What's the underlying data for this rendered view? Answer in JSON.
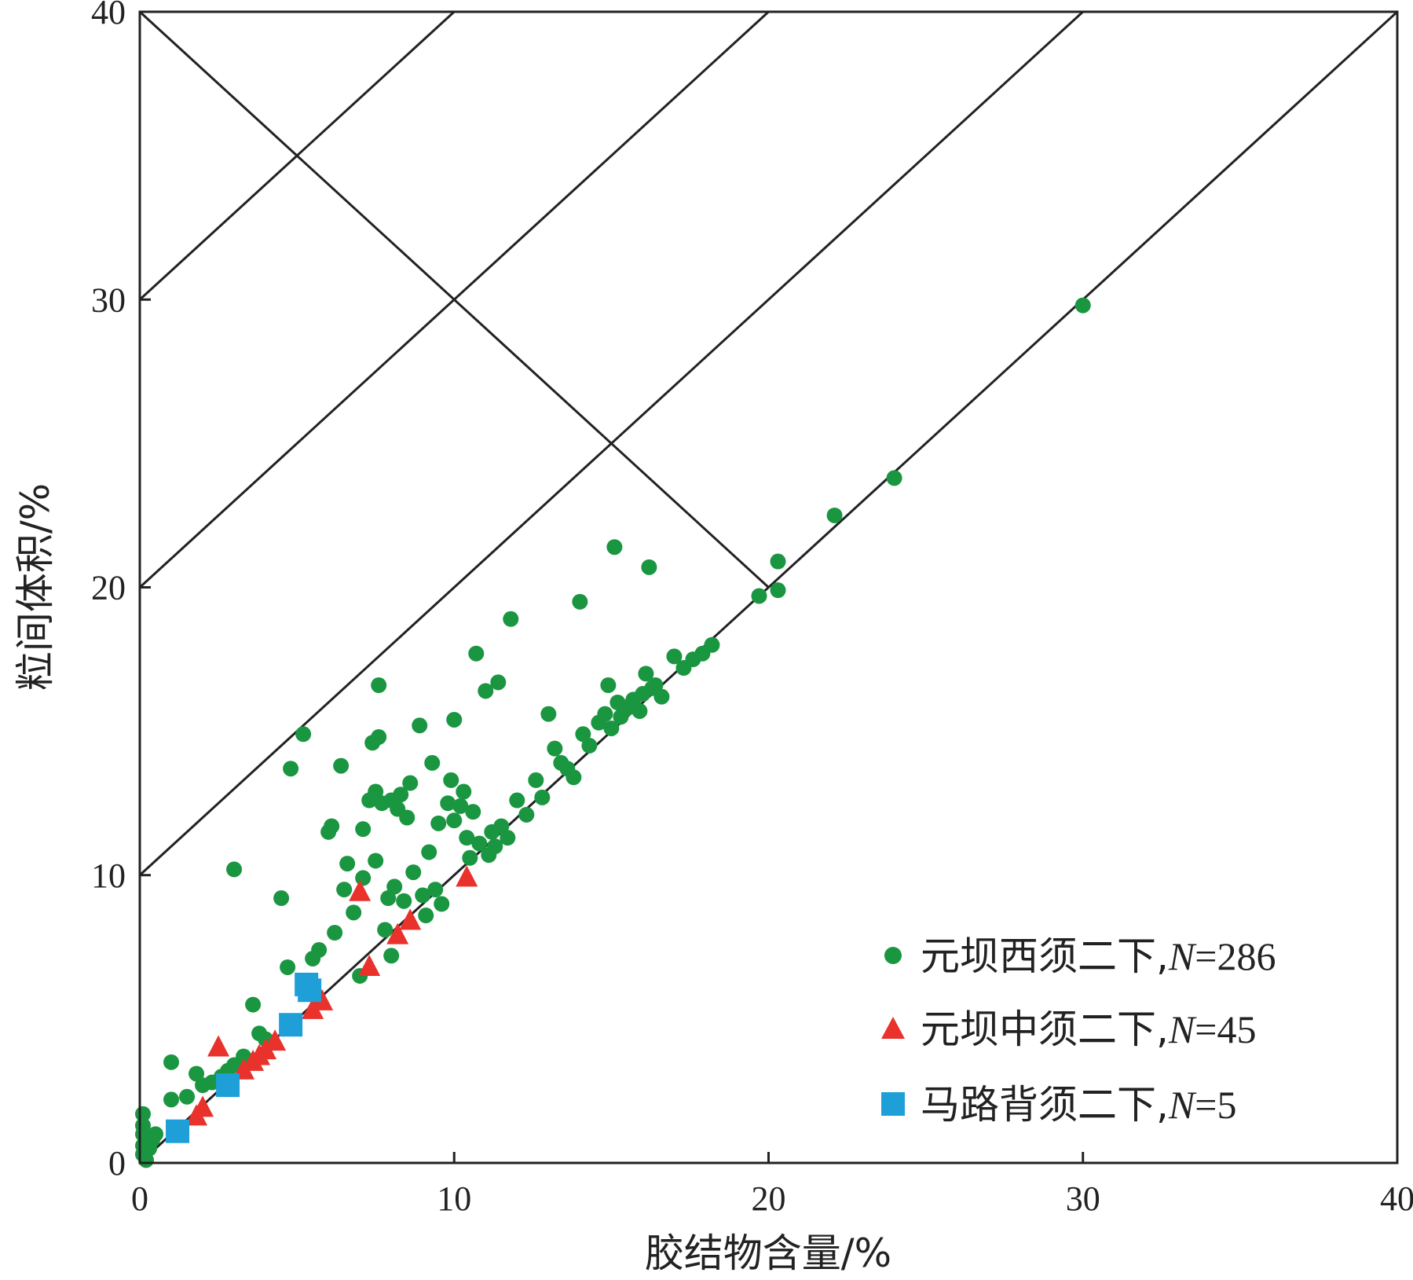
{
  "chart_data": {
    "type": "scatter",
    "xlabel": "胶结物含量/%",
    "ylabel": "粒间体积/%",
    "xlim": [
      0,
      40
    ],
    "ylim": [
      0,
      40
    ],
    "x_ticks": [
      "0",
      "10",
      "20",
      "30",
      "40"
    ],
    "y_ticks": [
      "0",
      "10",
      "20",
      "30",
      "40"
    ],
    "grid": false,
    "legend_position": "bottom-right",
    "reference_lines": [
      {
        "from": [
          0,
          40
        ],
        "to": [
          20,
          20
        ]
      },
      {
        "from": [
          0,
          10
        ],
        "to": [
          30,
          40
        ]
      },
      {
        "from": [
          0,
          20
        ],
        "to": [
          20,
          40
        ]
      },
      {
        "from": [
          0,
          30
        ],
        "to": [
          10,
          40
        ]
      },
      {
        "from": [
          0,
          0
        ],
        "to": [
          40,
          40
        ]
      }
    ],
    "series": [
      {
        "name": "元坝西须二下,N=286",
        "marker": "circle",
        "color": "#1a9641",
        "points": [
          [
            0.1,
            1.7
          ],
          [
            0.1,
            1.3
          ],
          [
            0.1,
            1.0
          ],
          [
            0.1,
            0.6
          ],
          [
            0.1,
            0.3
          ],
          [
            0.2,
            0.1
          ],
          [
            0.3,
            0.5
          ],
          [
            0.4,
            0.8
          ],
          [
            0.5,
            1.0
          ],
          [
            0.2,
            0.9
          ],
          [
            1.0,
            3.5
          ],
          [
            1.0,
            2.2
          ],
          [
            1.5,
            2.3
          ],
          [
            1.8,
            3.1
          ],
          [
            2.0,
            2.7
          ],
          [
            2.3,
            2.8
          ],
          [
            2.6,
            3.0
          ],
          [
            2.8,
            3.2
          ],
          [
            3.0,
            3.4
          ],
          [
            3.3,
            3.7
          ],
          [
            3.0,
            10.2
          ],
          [
            3.6,
            5.5
          ],
          [
            3.8,
            4.5
          ],
          [
            4.0,
            4.3
          ],
          [
            4.5,
            9.2
          ],
          [
            4.7,
            6.8
          ],
          [
            4.8,
            13.7
          ],
          [
            5.2,
            14.9
          ],
          [
            5.5,
            7.1
          ],
          [
            5.7,
            7.4
          ],
          [
            6.0,
            11.5
          ],
          [
            6.1,
            11.7
          ],
          [
            6.2,
            8.0
          ],
          [
            6.4,
            13.8
          ],
          [
            6.5,
            9.5
          ],
          [
            6.6,
            10.4
          ],
          [
            6.8,
            8.7
          ],
          [
            7.0,
            6.5
          ],
          [
            7.1,
            9.9
          ],
          [
            7.1,
            11.6
          ],
          [
            7.3,
            12.6
          ],
          [
            7.4,
            14.6
          ],
          [
            7.5,
            10.5
          ],
          [
            7.5,
            12.9
          ],
          [
            7.6,
            14.8
          ],
          [
            7.6,
            16.6
          ],
          [
            7.7,
            12.5
          ],
          [
            7.8,
            8.1
          ],
          [
            7.9,
            9.2
          ],
          [
            8.0,
            12.6
          ],
          [
            8.0,
            7.2
          ],
          [
            8.1,
            9.6
          ],
          [
            8.2,
            12.3
          ],
          [
            8.3,
            12.8
          ],
          [
            8.4,
            9.1
          ],
          [
            8.5,
            12.0
          ],
          [
            8.6,
            13.2
          ],
          [
            8.7,
            10.1
          ],
          [
            8.9,
            15.2
          ],
          [
            9.0,
            9.3
          ],
          [
            9.1,
            8.6
          ],
          [
            9.2,
            10.8
          ],
          [
            9.3,
            13.9
          ],
          [
            9.4,
            9.5
          ],
          [
            9.5,
            11.8
          ],
          [
            9.6,
            9.0
          ],
          [
            9.8,
            12.5
          ],
          [
            9.9,
            13.3
          ],
          [
            10.0,
            11.9
          ],
          [
            10.0,
            15.4
          ],
          [
            10.2,
            12.4
          ],
          [
            10.3,
            12.9
          ],
          [
            10.4,
            11.3
          ],
          [
            10.5,
            10.6
          ],
          [
            10.6,
            12.2
          ],
          [
            10.7,
            17.7
          ],
          [
            10.8,
            11.1
          ],
          [
            11.0,
            16.4
          ],
          [
            11.1,
            10.7
          ],
          [
            11.2,
            11.5
          ],
          [
            11.3,
            11.0
          ],
          [
            11.4,
            16.7
          ],
          [
            11.5,
            11.7
          ],
          [
            11.7,
            11.3
          ],
          [
            11.8,
            18.9
          ],
          [
            12.0,
            12.6
          ],
          [
            12.3,
            12.1
          ],
          [
            12.6,
            13.3
          ],
          [
            12.8,
            12.7
          ],
          [
            13.0,
            15.6
          ],
          [
            13.2,
            14.4
          ],
          [
            13.4,
            13.9
          ],
          [
            13.6,
            13.7
          ],
          [
            13.8,
            13.4
          ],
          [
            14.0,
            19.5
          ],
          [
            14.1,
            14.9
          ],
          [
            14.3,
            14.5
          ],
          [
            14.6,
            15.3
          ],
          [
            14.8,
            15.6
          ],
          [
            14.9,
            16.6
          ],
          [
            15.0,
            15.1
          ],
          [
            15.1,
            21.4
          ],
          [
            15.2,
            16.0
          ],
          [
            15.3,
            15.5
          ],
          [
            15.5,
            15.8
          ],
          [
            15.6,
            15.9
          ],
          [
            15.7,
            16.1
          ],
          [
            15.9,
            15.7
          ],
          [
            16.0,
            16.3
          ],
          [
            16.1,
            17.0
          ],
          [
            16.2,
            20.7
          ],
          [
            16.3,
            16.5
          ],
          [
            16.4,
            16.6
          ],
          [
            16.6,
            16.2
          ],
          [
            17.0,
            17.6
          ],
          [
            17.3,
            17.2
          ],
          [
            17.6,
            17.5
          ],
          [
            17.9,
            17.7
          ],
          [
            18.2,
            18.0
          ],
          [
            19.7,
            19.7
          ],
          [
            20.3,
            20.9
          ],
          [
            20.3,
            19.9
          ],
          [
            22.1,
            22.5
          ],
          [
            24.0,
            23.8
          ],
          [
            30.0,
            29.8
          ]
        ]
      },
      {
        "name": "元坝中须二下,N=45",
        "marker": "triangle",
        "color": "#e8322b",
        "points": [
          [
            1.8,
            1.6
          ],
          [
            2.0,
            1.9
          ],
          [
            2.5,
            4.0
          ],
          [
            3.3,
            3.2
          ],
          [
            3.6,
            3.5
          ],
          [
            3.8,
            3.7
          ],
          [
            4.0,
            3.9
          ],
          [
            4.3,
            4.2
          ],
          [
            5.5,
            5.3
          ],
          [
            5.8,
            5.6
          ],
          [
            7.0,
            9.4
          ],
          [
            7.3,
            6.8
          ],
          [
            8.2,
            7.9
          ],
          [
            8.6,
            8.4
          ],
          [
            10.4,
            9.9
          ]
        ]
      },
      {
        "name": "马路背须二下,N=5",
        "marker": "square",
        "color": "#1e9fd8",
        "points": [
          [
            1.2,
            1.1
          ],
          [
            2.8,
            2.7
          ],
          [
            4.8,
            4.8
          ],
          [
            5.3,
            6.2
          ],
          [
            5.4,
            6.0
          ]
        ]
      }
    ]
  },
  "legend": {
    "items": [
      {
        "label": "元坝西须二下,",
        "count": "286"
      },
      {
        "label": "元坝中须二下,",
        "count": "45"
      },
      {
        "label": "马路背须二下,",
        "count": "5"
      }
    ],
    "n_symbol": "N",
    "eq_symbol": "="
  }
}
